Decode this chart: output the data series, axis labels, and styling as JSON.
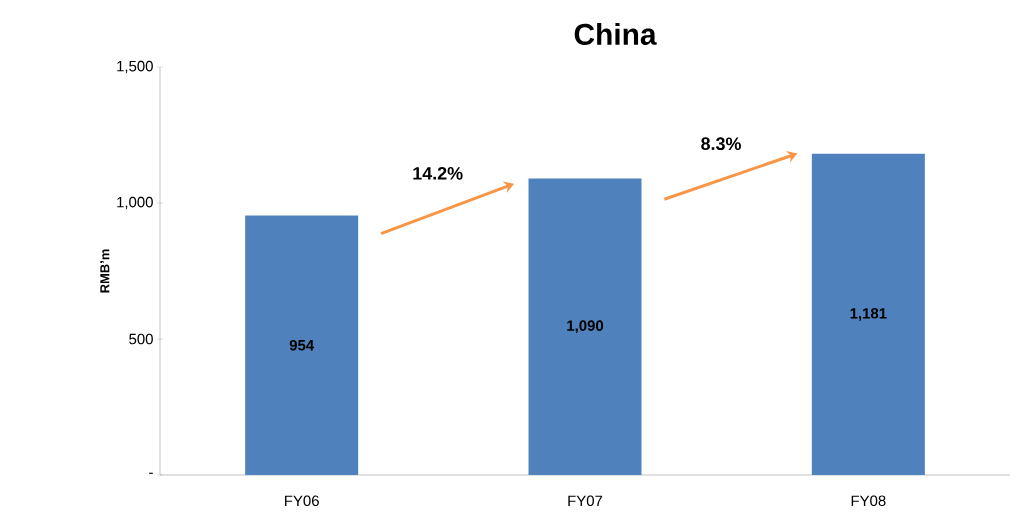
{
  "chart_data": {
    "type": "bar",
    "title": "China",
    "ylabel": "RMB’m",
    "categories": [
      "FY06",
      "FY07",
      "FY08"
    ],
    "values": [
      954,
      1090,
      1181
    ],
    "value_labels": [
      "954",
      "1,090",
      "1,181"
    ],
    "color": "#4f81bd",
    "ylim": [
      0,
      1500
    ],
    "yticks": [
      {
        "value": 0,
        "label": "-"
      },
      500,
      {
        "value": 1000,
        "label": "1,000"
      },
      {
        "value": 1500,
        "label": "1,500"
      }
    ],
    "annotations": [
      "14.2%",
      "8.3%"
    ],
    "grid": false
  }
}
